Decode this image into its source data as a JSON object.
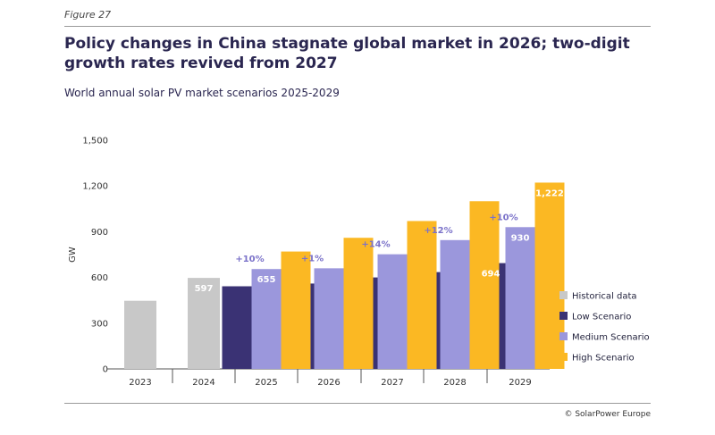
{
  "figure_label": "Figure 27",
  "title": "Policy changes in China stagnate global market in 2026; two-digit growth rates revived from 2027",
  "subtitle": "World annual solar PV market scenarios 2025-2029",
  "credit": "© SolarPower Europe",
  "colors": {
    "historical": "#c8c8c8",
    "low": "#3a3274",
    "medium": "#9b97dc",
    "high": "#fbb823",
    "growth_label": "#7b72c9"
  },
  "chart_data": {
    "type": "bar",
    "title": "World annual solar PV market scenarios 2025-2029",
    "ylabel": "GW",
    "ylim": [
      0,
      1500
    ],
    "yticks": [
      "0",
      "300",
      "600",
      "900",
      "1,200",
      "1,500"
    ],
    "ytick_values": [
      0,
      300,
      600,
      900,
      1200,
      1500
    ],
    "categories": [
      "2023",
      "2024",
      "2025",
      "2026",
      "2027",
      "2028",
      "2029"
    ],
    "series": [
      {
        "name": "Historical data",
        "values": [
          447,
          597,
          null,
          null,
          null,
          null,
          null
        ]
      },
      {
        "name": "Low Scenario",
        "values": [
          null,
          null,
          542,
          560,
          600,
          635,
          694
        ]
      },
      {
        "name": "Medium Scenario",
        "values": [
          null,
          null,
          655,
          660,
          752,
          845,
          930
        ]
      },
      {
        "name": "High Scenario",
        "values": [
          null,
          null,
          770,
          860,
          970,
          1100,
          1222
        ]
      }
    ],
    "data_labels": [
      {
        "category": "2024",
        "series": "Historical data",
        "text": "597"
      },
      {
        "category": "2025",
        "series": "Medium Scenario",
        "text": "655"
      },
      {
        "category": "2029",
        "series": "Low Scenario",
        "text": "694"
      },
      {
        "category": "2029",
        "series": "Medium Scenario",
        "text": "930"
      },
      {
        "category": "2029",
        "series": "High Scenario",
        "text": "1,222"
      }
    ],
    "growth_labels": [
      {
        "category": "2025",
        "text": "+10%"
      },
      {
        "category": "2026",
        "text": "+1%"
      },
      {
        "category": "2027",
        "text": "+14%"
      },
      {
        "category": "2028",
        "text": "+12%"
      },
      {
        "category": "2029",
        "text": "+10%"
      }
    ],
    "legend": [
      "Historical data",
      "Low Scenario",
      "Medium Scenario",
      "High Scenario"
    ],
    "legend_position": "right",
    "grid": false
  }
}
